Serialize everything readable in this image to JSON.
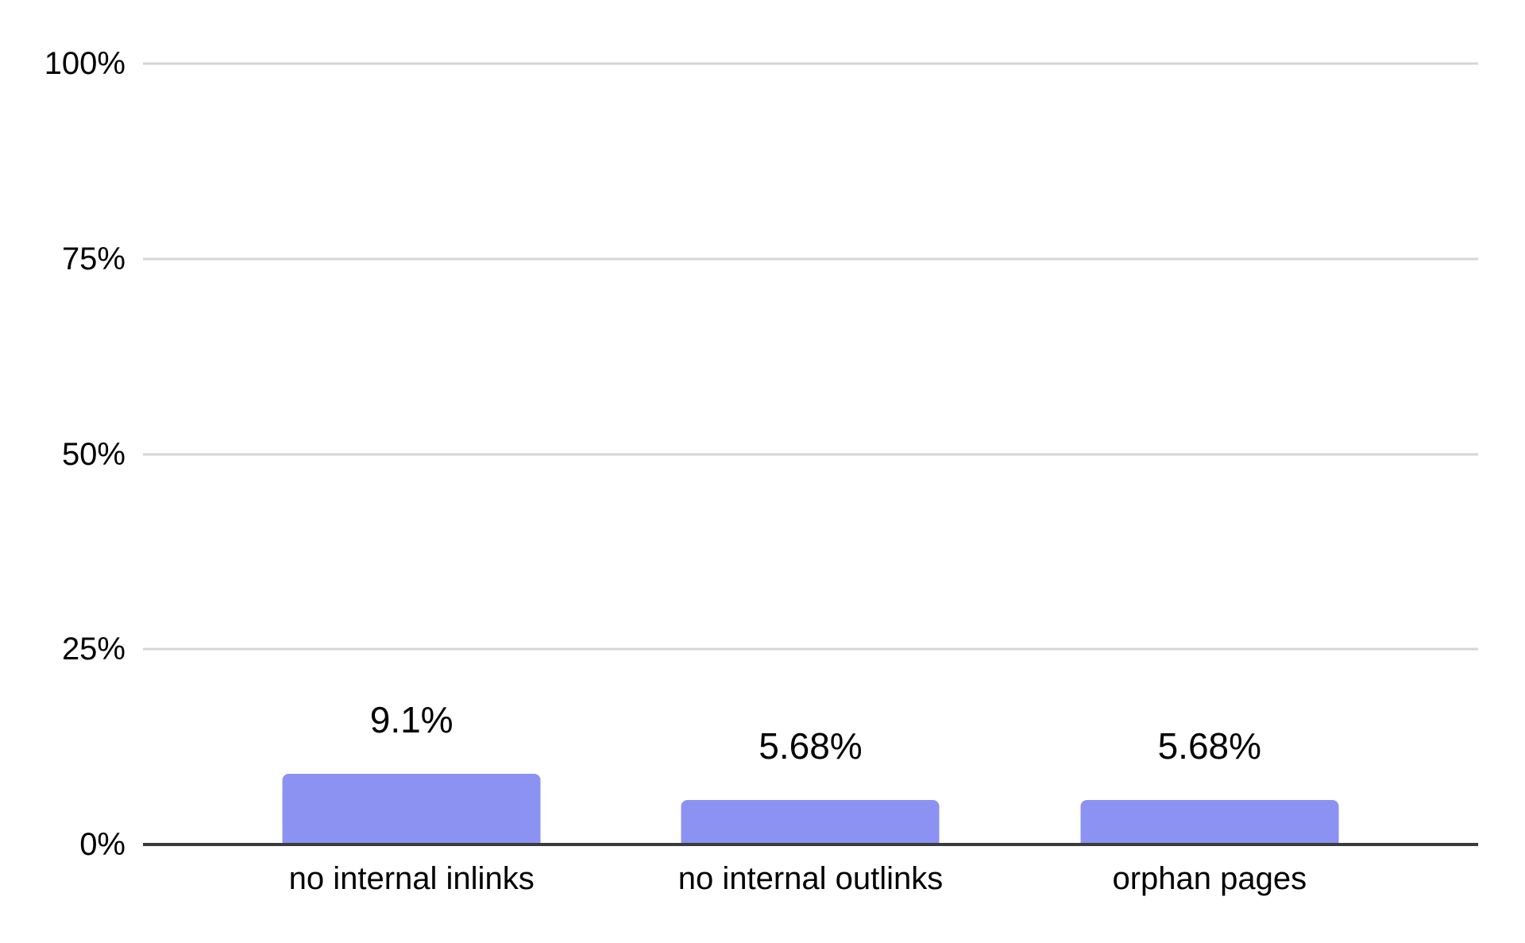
{
  "chart_data": {
    "type": "bar",
    "title": "",
    "xlabel": "",
    "ylabel": "",
    "categories": [
      "no internal inlinks",
      "no internal outlinks",
      "orphan pages"
    ],
    "values": [
      9.1,
      5.68,
      5.68
    ],
    "value_labels": [
      "9.1%",
      "5.68%",
      "5.68%"
    ],
    "ylim": [
      0,
      100
    ],
    "yticks": [
      0,
      25,
      50,
      75,
      100
    ],
    "ytick_labels": [
      "0%",
      "25%",
      "50%",
      "75%",
      "100%"
    ],
    "grid": true,
    "legend": "none",
    "colors": {
      "bar": "#8b92f2",
      "gridline": "#d5d5d5",
      "axis_line": "#3b3b3b",
      "text": "#000000",
      "background": "#ffffff"
    }
  }
}
